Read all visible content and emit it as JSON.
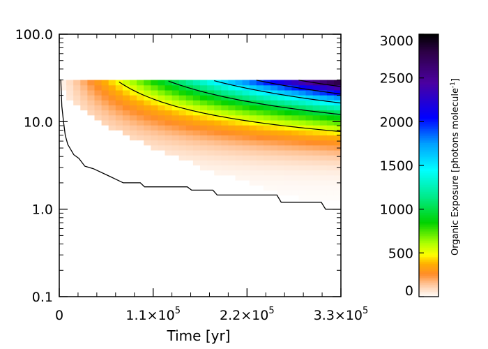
{
  "chart_data": {
    "type": "heatmap",
    "title": "",
    "xlabel": "Time [yr]",
    "ylabel": "",
    "x_range": [
      0,
      330000
    ],
    "y_range": [
      0.1,
      100
    ],
    "y_scale": "log",
    "x_ticks": [
      {
        "value": 0,
        "label": "0",
        "mantissa": "",
        "exponent": ""
      },
      {
        "value": 110000,
        "label": "1.1×10^5",
        "mantissa": "1.1×10",
        "exponent": "5"
      },
      {
        "value": 220000,
        "label": "2.2×10^5",
        "mantissa": "2.2×10",
        "exponent": "5"
      },
      {
        "value": 330000,
        "label": "3.3×10^5",
        "mantissa": "3.3×10",
        "exponent": "5"
      }
    ],
    "y_ticks": [
      {
        "value": 0.1,
        "label": "0.1"
      },
      {
        "value": 1.0,
        "label": "1.0"
      },
      {
        "value": 10.0,
        "label": "10.0"
      },
      {
        "value": 100.0,
        "label": "100.0"
      }
    ],
    "colorbar": {
      "label_main": "Organic Exposure [photons molecule",
      "label_sup": "-1",
      "label_close": "]",
      "range": [
        0,
        3000
      ],
      "ticks": [
        0,
        500,
        1000,
        1500,
        2000,
        2500,
        3000
      ],
      "tick_labels": [
        "0",
        "500",
        "1000",
        "1500",
        "2000",
        "2500",
        "3000"
      ]
    },
    "surface": {
      "description_source": "values estimated from colors",
      "y_max": 30,
      "x_cells": 40,
      "y_cells": 28,
      "y_min_cell": 0.75,
      "peak_value": 3000,
      "peak_y": 30
    },
    "contour_levels": [
      500,
      1000,
      1500,
      2000,
      2500
    ],
    "boundary_line": [
      [
        0,
        30
      ],
      [
        1800,
        30
      ],
      [
        3000,
        15
      ],
      [
        5000,
        10
      ],
      [
        7000,
        7
      ],
      [
        10000,
        5.5
      ],
      [
        17000,
        4.2
      ],
      [
        23000,
        3.8
      ],
      [
        30000,
        3.1
      ],
      [
        40000,
        2.9
      ],
      [
        58000,
        2.4
      ],
      [
        75000,
        2.0
      ],
      [
        95000,
        2.0
      ],
      [
        100000,
        1.8
      ],
      [
        150000,
        1.8
      ],
      [
        155000,
        1.65
      ],
      [
        180000,
        1.65
      ],
      [
        185000,
        1.45
      ],
      [
        255000,
        1.45
      ],
      [
        260000,
        1.2
      ],
      [
        307000,
        1.2
      ],
      [
        312000,
        1.0
      ],
      [
        330000,
        1.0
      ]
    ],
    "grid": false,
    "legend": "colorbar-right"
  }
}
